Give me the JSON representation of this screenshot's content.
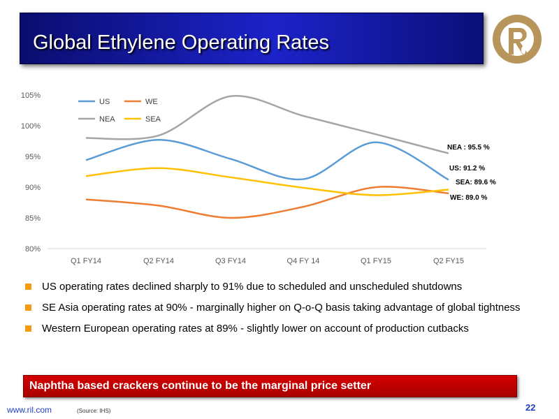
{
  "slide": {
    "title": "Global Ethylene Operating Rates",
    "page_number": "22",
    "footer_link": "www.ril.com",
    "source": "(Source: IHS)",
    "banner": "Naphtha based crackers continue to be the marginal price setter",
    "bullets": [
      "US operating rates declined sharply to 91% due to scheduled and unscheduled shutdowns",
      "SE Asia operating rates at 90% - marginally higher on Q-o-Q basis taking advantage of global tightness",
      "Western European operating rates at 89% - slightly lower on account of production cutbacks"
    ],
    "colors": {
      "title_bar": "#1c23c9",
      "banner": "#c00000",
      "bullet": "#f39c12",
      "logo": "#b8955a"
    }
  },
  "chart_data": {
    "type": "line",
    "categories": [
      "Q1 FY14",
      "Q2 FY14",
      "Q3 FY14",
      "Q4 FY 14",
      "Q1 FY15",
      "Q2 FY15"
    ],
    "y_ticks": [
      "80%",
      "85%",
      "90%",
      "95%",
      "100%",
      "105%"
    ],
    "ylim": [
      80,
      105
    ],
    "grid": false,
    "legend_position": "top-left",
    "series": [
      {
        "name": "US",
        "color": "#5b9bd5",
        "values": [
          94.4,
          97.7,
          94.6,
          91.3,
          97.3,
          91.2
        ]
      },
      {
        "name": "WE",
        "color": "#ed7d31",
        "values": [
          88.0,
          87.0,
          85.0,
          86.8,
          90.0,
          89.0
        ]
      },
      {
        "name": "NEA",
        "color": "#a5a5a5",
        "values": [
          98.0,
          98.4,
          104.8,
          101.6,
          98.6,
          95.5
        ]
      },
      {
        "name": "SEA",
        "color": "#ffc000",
        "values": [
          91.8,
          93.1,
          91.6,
          89.9,
          88.7,
          89.6
        ]
      }
    ],
    "annotations": [
      "NEA : 95.5 %",
      "US: 91.2 %",
      "SEA: 89.6 %",
      "WE: 89.0 %"
    ]
  }
}
